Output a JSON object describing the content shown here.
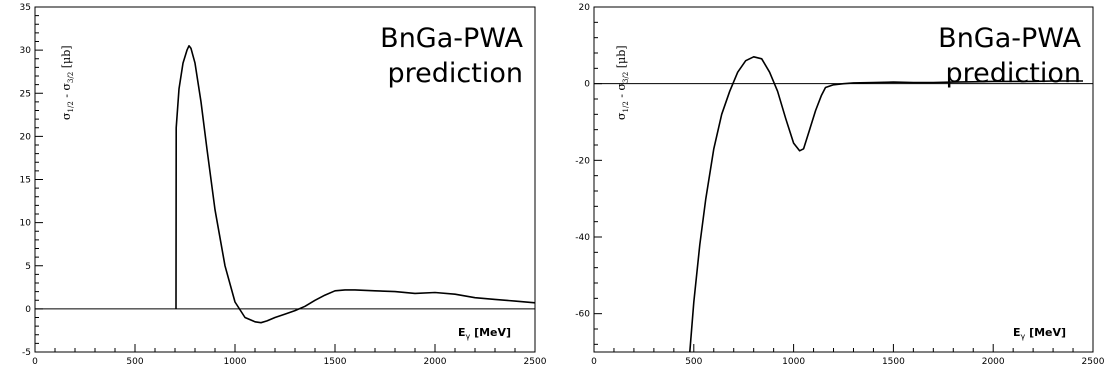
{
  "chart_data": [
    {
      "type": "line",
      "annotation": [
        "BnGa-PWA",
        "prediction"
      ],
      "ylabel": {
        "main": "σ",
        "sub1": "1/2",
        "mid": " - σ",
        "sub2": "3/2",
        "unit": " [μb]"
      },
      "xlabel": {
        "main": "E",
        "sub": "γ",
        "unit": " [MeV]"
      },
      "xlim": [
        0,
        2500
      ],
      "ylim": [
        -5,
        35
      ],
      "xticks": [
        0,
        500,
        1000,
        1500,
        2000,
        2500
      ],
      "yticks": [
        -5,
        0,
        5,
        10,
        15,
        20,
        25,
        30,
        35
      ],
      "series": [
        {
          "x": [
            705,
            706,
            720,
            740,
            760,
            770,
            780,
            800,
            830,
            860,
            900,
            950,
            1000,
            1050,
            1100,
            1130,
            1160,
            1200,
            1250,
            1300,
            1350,
            1400,
            1450,
            1500,
            1550,
            1600,
            1700,
            1800,
            1900,
            2000,
            2100,
            2200,
            2300,
            2400,
            2500
          ],
          "y": [
            0,
            21,
            25.5,
            28.5,
            30,
            30.5,
            30.2,
            28.5,
            24,
            18.5,
            11.5,
            5,
            0.8,
            -1,
            -1.5,
            -1.6,
            -1.4,
            -1.0,
            -0.6,
            -0.2,
            0.3,
            1.0,
            1.6,
            2.1,
            2.2,
            2.2,
            2.1,
            2.0,
            1.8,
            1.9,
            1.7,
            1.3,
            1.1,
            0.9,
            0.7
          ]
        }
      ]
    },
    {
      "type": "line",
      "annotation": [
        "BnGa-PWA",
        "prediction"
      ],
      "ylabel": {
        "main": "σ",
        "sub1": "1/2",
        "mid": " - σ",
        "sub2": "3/2",
        "unit": " [μb]"
      },
      "xlabel": {
        "main": "E",
        "sub": "γ",
        "unit": " [MeV]"
      },
      "xlim": [
        0,
        2500
      ],
      "ylim": [
        -70,
        20
      ],
      "xticks": [
        0,
        500,
        1000,
        1500,
        2000,
        2500
      ],
      "yticks": [
        -60,
        -40,
        -20,
        0,
        20
      ],
      "series": [
        {
          "x": [
            480,
            500,
            530,
            560,
            600,
            640,
            680,
            720,
            760,
            800,
            840,
            880,
            920,
            960,
            1000,
            1030,
            1050,
            1080,
            1110,
            1140,
            1160,
            1200,
            1250,
            1300,
            1400,
            1500,
            1600,
            1700,
            1800,
            1900,
            2000,
            2100,
            2200,
            2300,
            2450
          ],
          "y": [
            -70,
            -57,
            -42,
            -30,
            -17,
            -8,
            -2,
            3,
            6,
            7,
            6.5,
            3,
            -2,
            -9,
            -15.5,
            -17.5,
            -17,
            -12,
            -7,
            -3,
            -1,
            -0.3,
            0,
            0.2,
            0.3,
            0.4,
            0.3,
            0.3,
            0.4,
            0.5,
            0.6,
            0.6,
            0.6,
            0.7,
            0.7
          ]
        }
      ]
    }
  ]
}
